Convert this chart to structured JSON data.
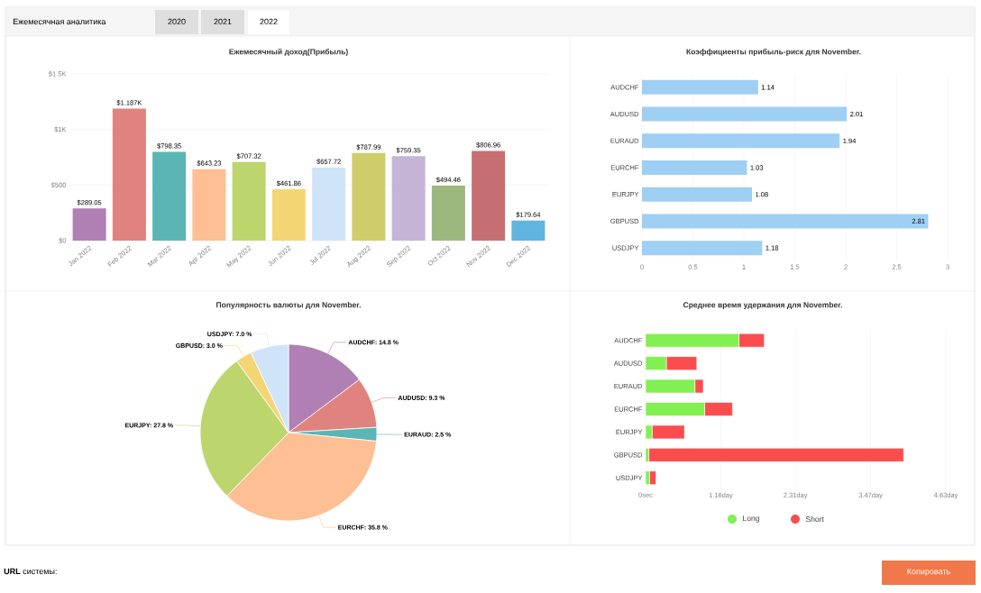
{
  "chart_data": [
    {
      "type": "other",
      "annotations": [
        "Ежемесячная аналитика",
        "2020",
        "2021",
        "2022"
      ]
    },
    {
      "type": "bar",
      "title": "Ежемесячный доход(Прибыль)",
      "categories": [
        "Jan 2022",
        "Feb 2022",
        "Mar 2022",
        "Apr 2022",
        "May 2022",
        "Jun 2022",
        "Jul 2022",
        "Aug 2022",
        "Sep 2022",
        "Oct 2022",
        "Nov 2022",
        "Dec 2022"
      ],
      "values": [
        289.05,
        1187,
        798.35,
        643.23,
        707.32,
        461.86,
        657.72,
        787.99,
        759.35,
        494.46,
        806.96,
        179.64
      ],
      "value_labels": [
        "$289.05",
        "$1.187K",
        "$798.35",
        "$643.23",
        "$707.32",
        "$461.86",
        "$657.72",
        "$787.99",
        "$759.35",
        "$494.46",
        "$806.96",
        "$179.64"
      ],
      "colors": [
        "#b07fb3",
        "#e0837f",
        "#5bb5b4",
        "#fdbf93",
        "#bcd56d",
        "#f4d574",
        "#cfe4f8",
        "#cfcc6a",
        "#c6b4d6",
        "#9cb87e",
        "#c66f73",
        "#60b4e0"
      ],
      "ylim": [
        0,
        1500
      ],
      "yticks": [
        {
          "value": 0,
          "label": "$0"
        },
        {
          "value": 500,
          "label": "$500"
        },
        {
          "value": 1000,
          "label": "$1K"
        },
        {
          "value": 1500,
          "label": "$1.5K"
        }
      ],
      "grid": "y"
    },
    {
      "type": "bar",
      "orientation": "horizontal",
      "title": "Коэффициенты прибыль-риск для November.",
      "categories": [
        "AUDCHF",
        "AUDUSD",
        "EURAUD",
        "EURCHF",
        "EURJPY",
        "GBPUSD",
        "USDJPY"
      ],
      "values": [
        1.14,
        2.01,
        1.94,
        1.03,
        1.08,
        2.81,
        1.18
      ],
      "color": "#9fcff3",
      "data_labels": true,
      "xlim": [
        0,
        3
      ],
      "xticks": [
        0,
        0.5,
        1,
        1.5,
        2,
        2.5,
        3
      ],
      "grid": "x"
    },
    {
      "type": "pie",
      "title": "Популярность валюты для November.",
      "categories": [
        "AUDCHF: 14.8 %",
        "AUDUSD: 9.3 %",
        "EURAUD: 2.5 %",
        "EURCHF: 35.8 %",
        "EURJPY: 27.8 %",
        "GBPUSD: 3.0 %",
        "USDJPY: 7.0 %"
      ],
      "values": [
        14.8,
        9.3,
        2.5,
        35.8,
        27.8,
        3.0,
        7.0
      ],
      "colors": [
        "#b07fb3",
        "#e0837f",
        "#5bb5b4",
        "#fdbf93",
        "#bcd56d",
        "#f4d574",
        "#cfe4f8"
      ]
    },
    {
      "type": "bar",
      "orientation": "horizontal",
      "stacked": true,
      "title": "Среднее время удержания для November.",
      "categories": [
        "AUDCHF",
        "AUDUSD",
        "EURAUD",
        "EURCHF",
        "EURJPY",
        "GBPUSD",
        "USDJPY"
      ],
      "series": [
        {
          "name": "Long",
          "color": "#82ef52",
          "values": [
            1.44,
            0.32,
            0.76,
            0.91,
            0.1,
            0.05,
            0.06
          ]
        },
        {
          "name": "Short",
          "color": "#fb4d4d",
          "values": [
            0.39,
            0.47,
            0.13,
            0.43,
            0.5,
            3.93,
            0.1
          ]
        }
      ],
      "xlim": [
        0,
        4.63
      ],
      "xticks": [
        {
          "value": 0,
          "label": "0sec"
        },
        {
          "value": 1.16,
          "label": "1.16day"
        },
        {
          "value": 2.31,
          "label": "2.31day"
        },
        {
          "value": 3.47,
          "label": "3.47day"
        },
        {
          "value": 4.63,
          "label": "4.63day"
        }
      ],
      "grid": "x",
      "legend": "bottom"
    },
    {
      "type": "other",
      "annotations": [
        "**URL** системы:",
        "Копировать"
      ]
    }
  ]
}
